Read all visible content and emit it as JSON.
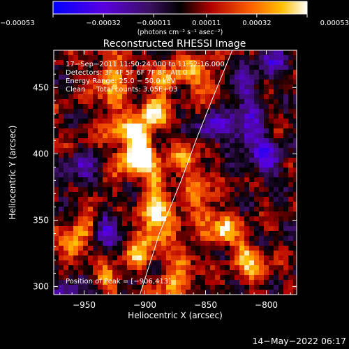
{
  "chart_data": {
    "type": "heatmap",
    "title": "Reconstructed RHESSI Image",
    "xlabel": "Heliocentric X (arcsec)",
    "ylabel": "Heliocentric Y (arcsec)",
    "xlim": [
      -975,
      -775
    ],
    "ylim": [
      294,
      478
    ],
    "xticks": [
      -950,
      -900,
      -850,
      -800
    ],
    "xtick_labels": [
      "−950",
      "−900",
      "−850",
      "−800"
    ],
    "yticks": [
      300,
      350,
      400,
      450
    ],
    "ytick_labels": [
      "300",
      "350",
      "400",
      "450"
    ],
    "colorbar": {
      "min": -0.00053,
      "max": 0.00053,
      "ticks": [
        -0.00053,
        -0.00032,
        -0.00011,
        0.00011,
        0.00032,
        0.00053
      ],
      "tick_labels": [
        "−0.00053",
        "−0.00032",
        "−0.00011",
        "0.00011",
        "0.00032",
        "0.00053"
      ],
      "unit_label": "(photons cm⁻² s⁻¹ asec⁻²)"
    },
    "annotations": [
      "17−Sep−2011 11:50:24.000 to 11:52:16.000",
      "Detectors: 3F 4F 5F 6F 7F 8F, Att 0",
      "Energy Range: 25.0 − 50.0 keV",
      "Clean     Total counts: 3.05E+03"
    ],
    "peak_label": "Position of Peak = [−906,413]",
    "peak": [
      -906,
      413
    ],
    "limb_curve": [
      [
        -904,
        294
      ],
      [
        -888,
        340
      ],
      [
        -870,
        380
      ],
      [
        -858,
        410
      ],
      [
        -845,
        440
      ],
      [
        -828,
        478
      ]
    ],
    "hotspots": [
      [
        -906,
        413,
        1.0
      ],
      [
        -893,
        432,
        0.95
      ],
      [
        -882,
        455,
        0.8
      ],
      [
        -900,
        398,
        0.85
      ],
      [
        -915,
        395,
        0.75
      ],
      [
        -925,
        440,
        0.6
      ],
      [
        -933,
        458,
        0.55
      ],
      [
        -918,
        470,
        0.5
      ],
      [
        -889,
        380,
        0.7
      ],
      [
        -893,
        358,
        0.75
      ],
      [
        -897,
        340,
        0.65
      ],
      [
        -905,
        325,
        0.6
      ],
      [
        -958,
        330,
        0.75
      ],
      [
        -948,
        345,
        0.55
      ],
      [
        -940,
        362,
        0.5
      ],
      [
        -930,
        305,
        0.55
      ],
      [
        -878,
        348,
        0.6
      ],
      [
        -868,
        318,
        0.6
      ],
      [
        -850,
        355,
        0.55
      ],
      [
        -835,
        342,
        0.8
      ],
      [
        -818,
        325,
        0.6
      ],
      [
        -808,
        312,
        0.5
      ],
      [
        -866,
        398,
        0.55
      ],
      [
        -856,
        378,
        0.5
      ],
      [
        -848,
        452,
        0.6
      ],
      [
        -860,
        465,
        0.5
      ],
      [
        -924,
        418,
        0.45
      ],
      [
        -880,
        302,
        0.5
      ]
    ],
    "coldspots": [
      [
        -935,
        346,
        0.7
      ],
      [
        -815,
        418,
        0.75
      ],
      [
        -800,
        395,
        0.6
      ],
      [
        -952,
        385,
        0.5
      ],
      [
        -845,
        420,
        0.5
      ],
      [
        -820,
        448,
        0.5
      ],
      [
        -962,
        300,
        0.4
      ],
      [
        -795,
        470,
        0.45
      ]
    ]
  },
  "footer": {
    "date": "14−May−2022 06:17"
  }
}
